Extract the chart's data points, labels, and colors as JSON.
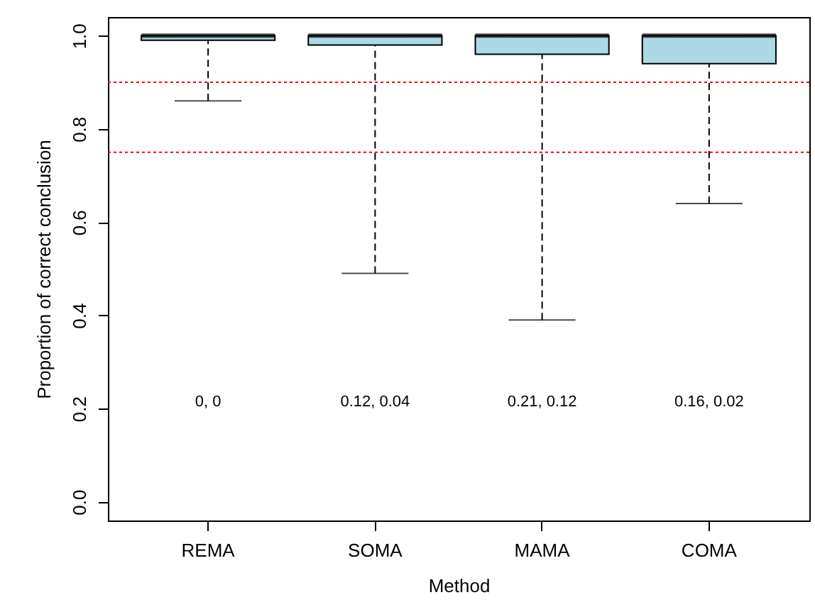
{
  "chart_data": {
    "type": "box",
    "xlabel": "Method",
    "ylabel": "Proportion of correct conclusion",
    "categories": [
      "REMA",
      "SOMA",
      "MAMA",
      "COMA"
    ],
    "series": [
      {
        "color": "#add8e6",
        "boxes": [
          {
            "low": 0.86,
            "q1": 0.99,
            "median": 1,
            "q3": 1,
            "high": 1
          },
          {
            "low": 0.49,
            "q1": 0.98,
            "median": 1,
            "q3": 1,
            "high": 1
          },
          {
            "low": 0.39,
            "q1": 0.96,
            "median": 1,
            "q3": 1,
            "high": 1
          },
          {
            "low": 0.64,
            "q1": 0.94,
            "median": 1,
            "q3": 1,
            "high": 1
          }
        ]
      }
    ],
    "ylim": [
      -0.04,
      1.04
    ],
    "yticks": [
      {
        "value": 0,
        "label": "0.0"
      },
      {
        "value": 0.2,
        "label": "0.2"
      },
      {
        "value": 0.4,
        "label": "0.4"
      },
      {
        "value": 0.6,
        "label": "0.6"
      },
      {
        "value": 0.8,
        "label": "0.8"
      },
      {
        "value": 1,
        "label": "1.0"
      }
    ],
    "ref_lines": [
      {
        "axis": "y",
        "value": 0.9,
        "color": "#ff0000",
        "line_style": "dotted"
      },
      {
        "axis": "y",
        "value": 0.75,
        "color": "#ff0000",
        "line_style": "dotted"
      }
    ],
    "annotations": [
      "0, 0",
      "0.12, 0.04",
      "0.21, 0.12",
      "0.16, 0.02"
    ]
  }
}
